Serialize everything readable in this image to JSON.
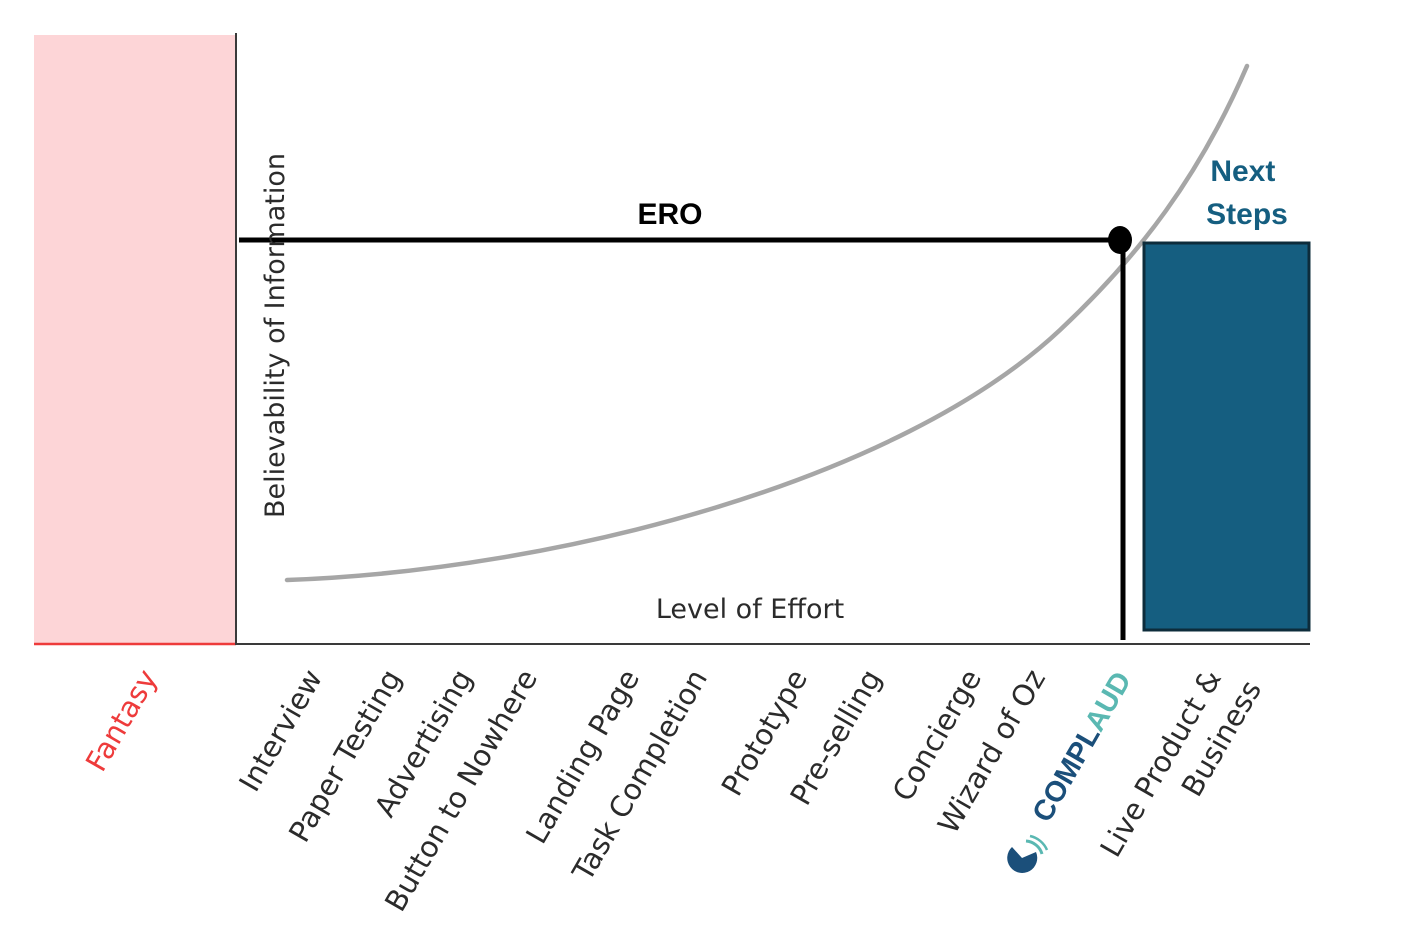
{
  "diagram": {
    "y_axis_title": "Believability of Information",
    "x_axis_title": "Level of Effort",
    "fantasy_label": "Fantasy",
    "ero_label": "ERO",
    "next_steps_label": [
      "Next",
      "Steps"
    ],
    "stages": [
      "Interview",
      "Paper Testing",
      "Advertising",
      "Button to Nowhere",
      "Landing Page",
      "Task Completion",
      "Prototype",
      "Pre-selling",
      "Concierge",
      "Wizard of Oz"
    ],
    "final_stage": [
      "Live Product &",
      "Business"
    ],
    "logo": {
      "text_part1": "COMPL",
      "text_part2": "AUD"
    },
    "colors": {
      "fantasy_fill": "#fdd5d7",
      "fantasy_text": "#ee3b3b",
      "next_steps": "#155e80",
      "curve": "#a6a6a6",
      "logo_dark": "#1b4f7a",
      "logo_teal": "#5ab8b2"
    }
  }
}
